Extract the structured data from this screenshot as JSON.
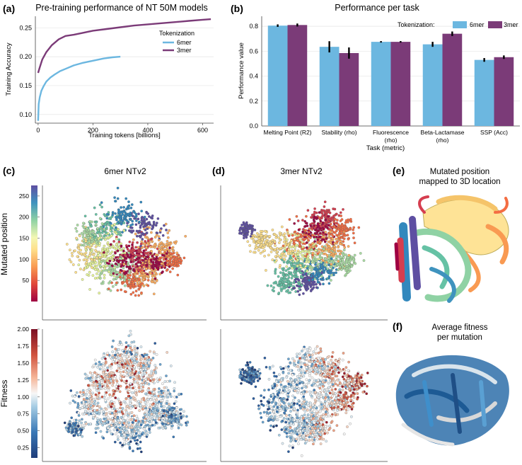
{
  "panels": {
    "a": "(a)",
    "b": "(b)",
    "c": "(c)",
    "d": "(d)",
    "e": "(e)",
    "f": "(f)"
  },
  "chart_data": [
    {
      "type": "line",
      "title": "Pre-training performance of NT 50M models",
      "xlabel": "Training tokens [billions]",
      "ylabel": "Training Accuracy",
      "xlim": [
        -10,
        640
      ],
      "ylim": [
        0.085,
        0.27
      ],
      "xticks": [
        0,
        200,
        400,
        600
      ],
      "yticks": [
        0.1,
        0.15,
        0.2,
        0.25
      ],
      "ytick_labels": [
        "0.10",
        "0.15",
        "0.20",
        "0.25"
      ],
      "legend_title": "Tokenization",
      "legend_position": "right",
      "series": [
        {
          "name": "6mer",
          "color": "#6cb7e0",
          "x": [
            0,
            2,
            6,
            12,
            20,
            30,
            45,
            60,
            80,
            100,
            130,
            160,
            200,
            240,
            270,
            300
          ],
          "y": [
            0.089,
            0.118,
            0.13,
            0.141,
            0.149,
            0.157,
            0.164,
            0.169,
            0.175,
            0.179,
            0.185,
            0.189,
            0.193,
            0.197,
            0.199,
            0.2
          ]
        },
        {
          "name": "3mer",
          "color": "#7b3b78",
          "x": [
            0,
            5,
            15,
            30,
            50,
            75,
            100,
            130,
            160,
            200,
            250,
            300,
            350,
            400,
            450,
            500,
            550,
            600,
            630
          ],
          "y": [
            0.172,
            0.18,
            0.195,
            0.208,
            0.22,
            0.23,
            0.236,
            0.238,
            0.241,
            0.245,
            0.248,
            0.251,
            0.254,
            0.256,
            0.258,
            0.26,
            0.262,
            0.264,
            0.265
          ]
        }
      ]
    },
    {
      "type": "bar",
      "title": "Performance per task",
      "xlabel": "Task (metric)",
      "ylabel": "Performance value",
      "ylim": [
        0,
        0.88
      ],
      "yticks": [
        0.0,
        0.2,
        0.4,
        0.6,
        0.8
      ],
      "ytick_labels": [
        "0.0",
        "0.2",
        "0.4",
        "0.6",
        "0.8"
      ],
      "legend_title": "Tokenization:",
      "legend_position": "top-right",
      "categories": [
        [
          "Melting Point (R2)"
        ],
        [
          "Stability (rho)"
        ],
        [
          "Fluorescence",
          "(rho)"
        ],
        [
          "Beta-Lactamase",
          "(rho)"
        ],
        [
          "SSP (Acc)"
        ]
      ],
      "series": [
        {
          "name": "6mer",
          "color": "#6cb7e0",
          "values": [
            0.805,
            0.635,
            0.675,
            0.655,
            0.53
          ],
          "errors": [
            0.01,
            0.045,
            0.006,
            0.02,
            0.015
          ]
        },
        {
          "name": "3mer",
          "color": "#7b3b78",
          "values": [
            0.81,
            0.585,
            0.675,
            0.74,
            0.552
          ],
          "errors": [
            0.012,
            0.045,
            0.006,
            0.018,
            0.014
          ]
        }
      ]
    },
    {
      "type": "scatter",
      "title": "6mer NTv2",
      "ylabel": "Mutated position",
      "colorbar_ticks": [
        "50",
        "100",
        "150",
        "200",
        "250"
      ],
      "colorbar_range": [
        0,
        275
      ]
    },
    {
      "type": "scatter",
      "title": "3mer NTv2"
    },
    {
      "type": "scatter",
      "ylabel": "Fitness",
      "colorbar_ticks": [
        "0.25",
        "0.50",
        "0.75",
        "1.00",
        "1.25",
        "1.50",
        "1.75",
        "2.00"
      ],
      "colorbar_range": [
        0.1,
        2.0
      ]
    }
  ],
  "structure_panels": {
    "e_title": [
      "Mutated position",
      "mapped to 3D location"
    ],
    "f_title": [
      "Average fitness",
      "per mutation"
    ]
  },
  "colors": {
    "c6mer": "#6cb7e0",
    "c3mer": "#7b3b78",
    "grid": "#e6e6e6"
  }
}
